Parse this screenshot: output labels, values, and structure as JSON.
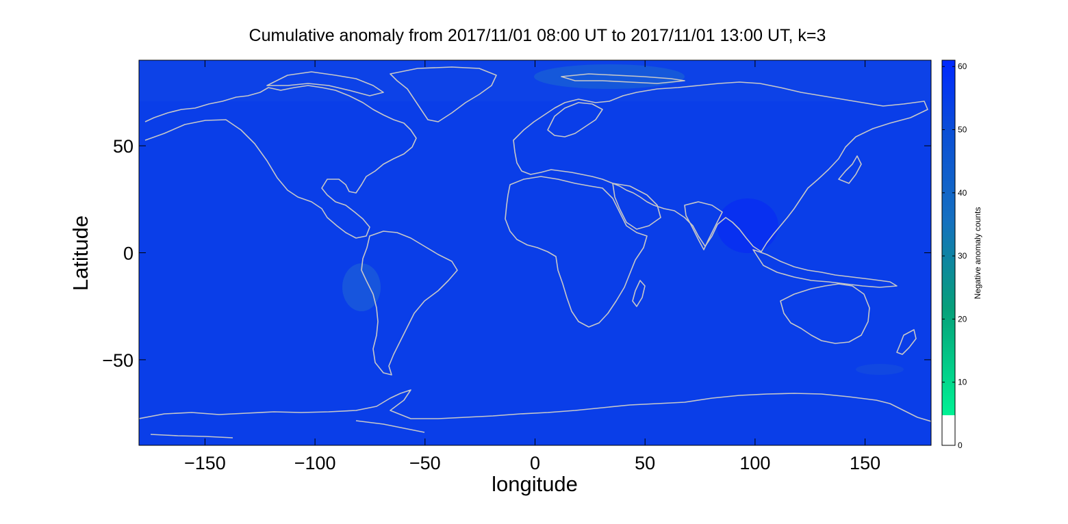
{
  "title": "Cumulative anomaly from 2017/11/01 08:00 UT to 2017/11/01 13:00 UT, k=3",
  "map": {
    "projection": "equirectangular",
    "lon_range": [
      -180,
      180
    ],
    "lat_range": [
      -90,
      90
    ],
    "xlabel": "longitude",
    "ylabel": "Latitude",
    "x_ticks": [
      {
        "value": -150,
        "label": "−150"
      },
      {
        "value": -100,
        "label": "−100"
      },
      {
        "value": -50,
        "label": "−50"
      },
      {
        "value": 0,
        "label": "0"
      },
      {
        "value": 50,
        "label": "50"
      },
      {
        "value": 100,
        "label": "100"
      },
      {
        "value": 150,
        "label": "150"
      }
    ],
    "y_ticks": [
      {
        "value": 50,
        "label": "50"
      },
      {
        "value": 0,
        "label": "0"
      },
      {
        "value": -50,
        "label": "−50"
      }
    ],
    "background_fill_color": "#0a3ee8",
    "coastline_color": "#c8c8c8",
    "grid": false,
    "field": "Negative anomaly counts, nearly uniform near maximum over the globe"
  },
  "colorbar": {
    "label": "Negative anomaly counts",
    "range": [
      0,
      61
    ],
    "ticks": [
      {
        "value": 0,
        "label": "0"
      },
      {
        "value": 10,
        "label": "10"
      },
      {
        "value": 20,
        "label": "20"
      },
      {
        "value": 30,
        "label": "30"
      },
      {
        "value": 40,
        "label": "40"
      },
      {
        "value": 50,
        "label": "50"
      },
      {
        "value": 60,
        "label": "60"
      }
    ],
    "white_below": 5,
    "colors": [
      "#ffffff",
      "#00f294",
      "#06a07a",
      "#1570c0",
      "#0a3ee8",
      "#0028ff"
    ]
  }
}
